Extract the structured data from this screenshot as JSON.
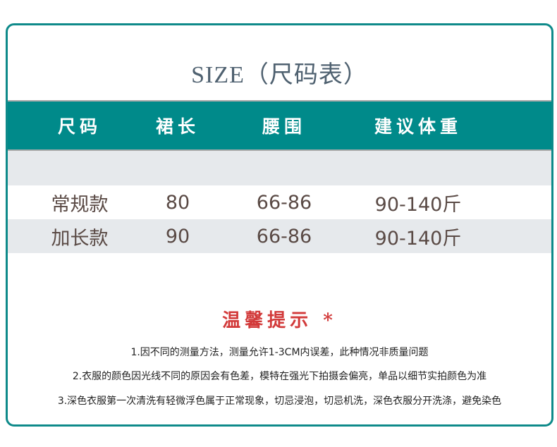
{
  "title": "SIZE（尺码表）",
  "table": {
    "headers": [
      "尺码",
      "裙长",
      "腰围",
      "建议体重"
    ],
    "rows": [
      [
        "常规款",
        "80",
        "66-86",
        "90-140斤"
      ],
      [
        "加长款",
        "90",
        "66-86",
        "90-140斤"
      ]
    ]
  },
  "tips": {
    "title": "温馨提示 *",
    "lines": [
      "1.因不同的测量方法，测量允许1-3CM内误差，此种情况非质量问题",
      "2.衣服的颜色因光线不同的原因会有色差，模特在强光下拍摄会偏亮，单品以细节实拍颜色为准",
      "3.深色衣服第一次清洗有轻微浮色属于正常现象，切忌浸泡，切忌机洗，深色衣服分开洗涤，避免染色"
    ]
  },
  "colors": {
    "accent": "#008a8a",
    "tips_title": "#d23a3a",
    "row_alt": "#e6e9ec"
  }
}
